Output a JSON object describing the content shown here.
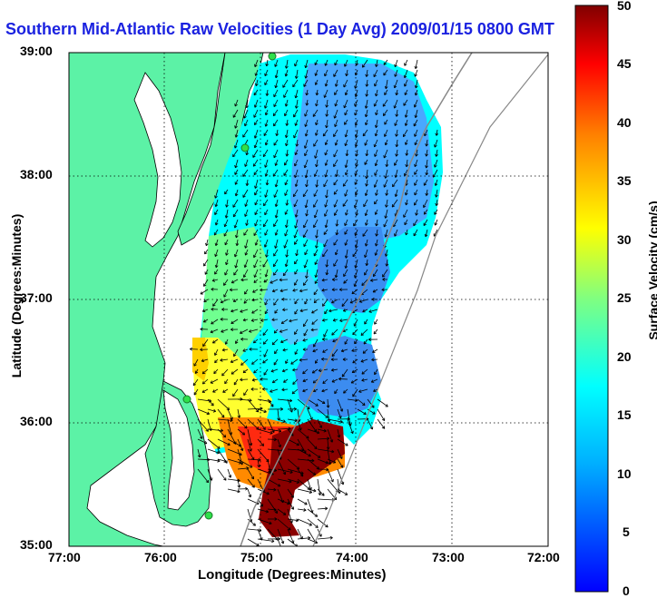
{
  "title": "Southern Mid-Atlantic Raw Velocities (1 Day Avg) 2009/01/15 0800 GMT",
  "x_axis": {
    "label": "Longitude (Degrees:Minutes)",
    "ticks": [
      "77:00",
      "76:00",
      "75:00",
      "74:00",
      "73:00",
      "72:00"
    ]
  },
  "y_axis": {
    "label": "Latitude (Degrees:Minutes)",
    "ticks": [
      "39:00",
      "38:00",
      "37:00",
      "36:00",
      "35:00"
    ]
  },
  "colorbar": {
    "label": "Surface Velocity (cm/s)",
    "ticks": [
      "50",
      "45",
      "40",
      "35",
      "30",
      "25",
      "20",
      "15",
      "10",
      "5",
      "0"
    ],
    "range": [
      0,
      50
    ],
    "colormap": "jet"
  },
  "map": {
    "lon_range": [
      -77,
      -72
    ],
    "lat_range": [
      35,
      39
    ],
    "land_color": "#5cf2a6",
    "grid": "dotted",
    "arrow_color": "#000000",
    "station_color": "#2ee04a"
  }
}
